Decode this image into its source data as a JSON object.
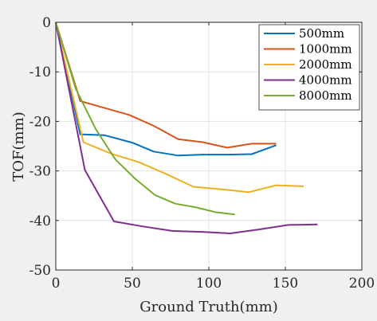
{
  "chart_data": {
    "type": "line",
    "title": "",
    "xlabel": "Ground Truth(mm)",
    "ylabel": "TOF(mm)",
    "xlim": [
      0,
      200
    ],
    "ylim": [
      -50,
      0
    ],
    "xticks": [
      0,
      50,
      100,
      150,
      200
    ],
    "yticks": [
      0,
      -10,
      -20,
      -30,
      -40,
      -50
    ],
    "grid": true,
    "legend_position": "top-right",
    "series": [
      {
        "name": "500mm",
        "color": "#0072BD",
        "x": [
          0,
          16,
          32,
          50,
          64,
          80,
          96,
          112,
          128,
          144
        ],
        "y": [
          0,
          -22.6,
          -22.8,
          -24.3,
          -26.1,
          -26.9,
          -26.7,
          -26.7,
          -26.6,
          -24.8
        ]
      },
      {
        "name": "1000mm",
        "color": "#D95319",
        "x": [
          0,
          16,
          32,
          48,
          64,
          80,
          96,
          112,
          128,
          144
        ],
        "y": [
          0,
          -15.9,
          -17.3,
          -18.7,
          -20.9,
          -23.6,
          -24.2,
          -25.3,
          -24.5,
          -24.5
        ]
      },
      {
        "name": "2000mm",
        "color": "#EDB120",
        "x": [
          0,
          18,
          36,
          54,
          72,
          90,
          108,
          126,
          144,
          162
        ],
        "y": [
          0,
          -24.2,
          -26.5,
          -28.2,
          -30.6,
          -33.2,
          -33.7,
          -34.3,
          -32.9,
          -33.1
        ]
      },
      {
        "name": "4000mm",
        "color": "#7E2F8E",
        "x": [
          0,
          19,
          38,
          57,
          76,
          95,
          114,
          133,
          152,
          171
        ],
        "y": [
          0,
          -29.8,
          -40.2,
          -41.2,
          -42.1,
          -42.3,
          -42.6,
          -41.8,
          -40.9,
          -40.8
        ]
      },
      {
        "name": "8000mm",
        "color": "#77AC30",
        "x": [
          0,
          13,
          26,
          39,
          52,
          65,
          78,
          91,
          104,
          117
        ],
        "y": [
          0,
          -13.4,
          -21.5,
          -27.7,
          -31.6,
          -34.9,
          -36.6,
          -37.3,
          -38.3,
          -38.8
        ]
      }
    ]
  }
}
